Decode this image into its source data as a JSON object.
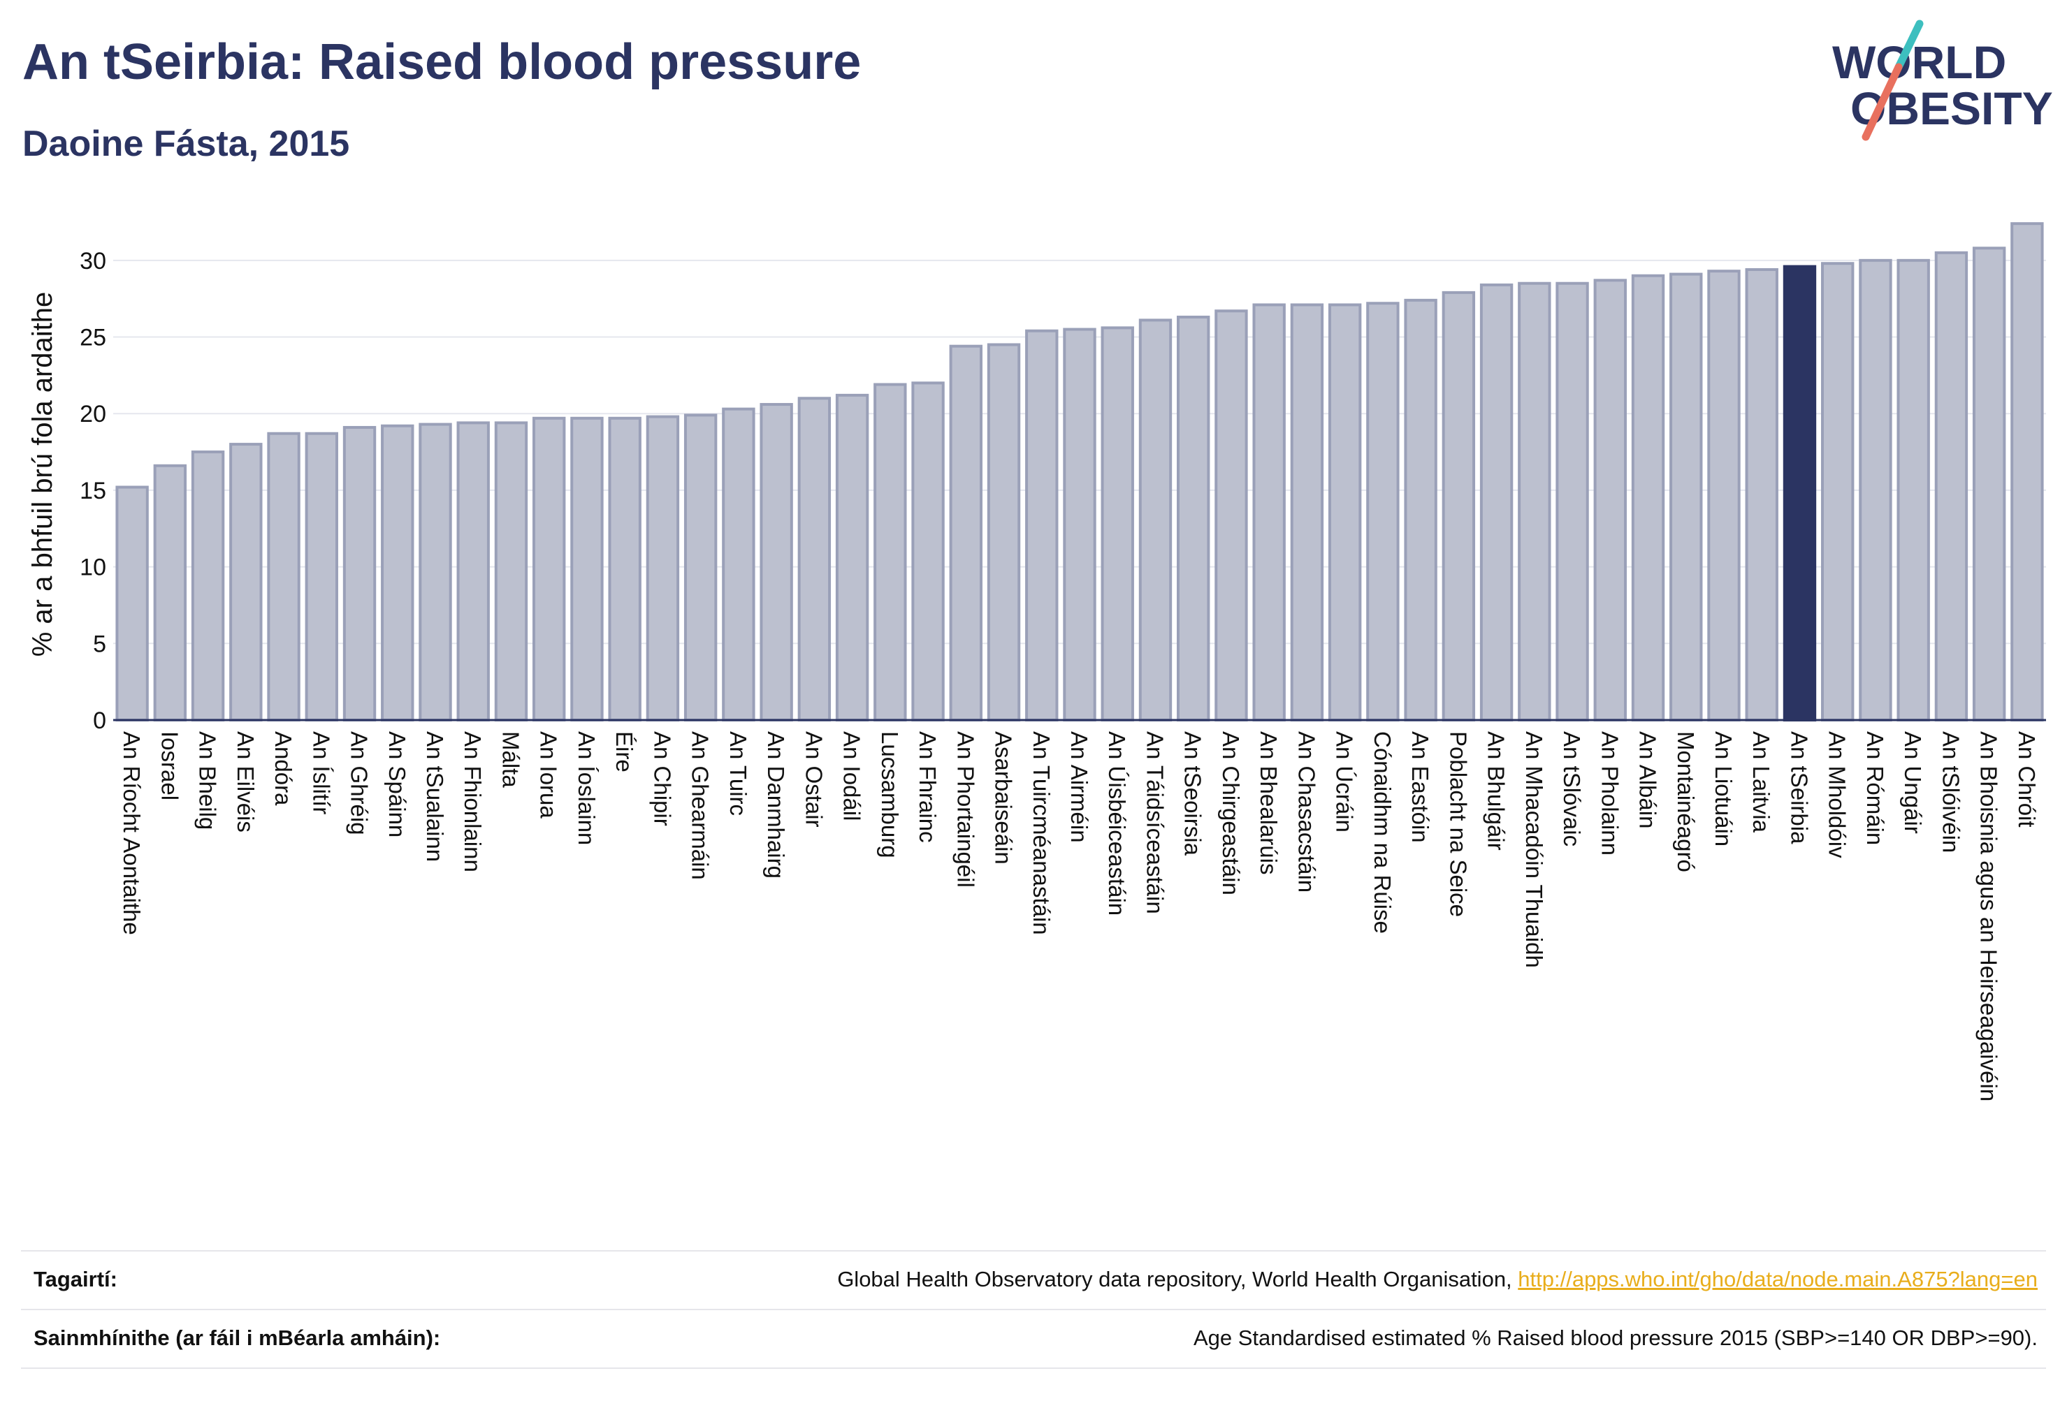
{
  "header": {
    "title": "An tSeirbia: Raised blood pressure",
    "subtitle": "Daoine Fásta, 2015"
  },
  "logo": {
    "line1": "WORLD",
    "line2": "OBESITY",
    "colors": {
      "text": "#2b3462",
      "slash_teal": "#3dbfbf",
      "slash_coral": "#e8705e"
    }
  },
  "colors": {
    "bar_default": "#bcc0cf",
    "bar_default_edge": "#9aa0b8",
    "bar_highlight": "#2b3462",
    "axis": "#2b3462",
    "grid": "#e5e7ee"
  },
  "chart_data": {
    "type": "bar",
    "ylabel": "% ar a bhfuil brú fola ardaithe",
    "xlabel": "",
    "ylim": [
      0,
      33
    ],
    "yticks": [
      0,
      5,
      10,
      15,
      20,
      25,
      30
    ],
    "grid": true,
    "highlight": "An tSeirbia",
    "categories": [
      "An Ríocht Aontaithe",
      "Iosrael",
      "An Bheilg",
      "An Eilvéis",
      "Andóra",
      "An Íslitír",
      "An Ghréig",
      "An Spáinn",
      "An tSualainn",
      "An Fhionlainn",
      "Málta",
      "An Iorua",
      "An Íoslainn",
      "Éire",
      "An Chipir",
      "An Ghearmáin",
      "An Tuirc",
      "An Danmhairg",
      "An Ostair",
      "An Iodáil",
      "Lucsamburg",
      "An Fhrainc",
      "An Phortaingéil",
      "Asarbaiseáin",
      "An Tuircméanastáin",
      "An Airméin",
      "An Úisbéiceastáin",
      "An Táidsíceastáin",
      "An tSeoirsia",
      "An Chirgeastáin",
      "An Bhealarúis",
      "An Chasacstáin",
      "An Úcráin",
      "Cónaidhm na Rúise",
      "An Eastóin",
      "Poblacht na Seice",
      "An Bhulgáir",
      "An Mhacadóin Thuaidh",
      "An tSlóvaic",
      "An Pholainn",
      "An Albáin",
      "Montainéagró",
      "An Liotuáin",
      "An Laitvia",
      "An tSeirbia",
      "An Mholdóiv",
      "An Rómáin",
      "An Ungáir",
      "An tSlóivéin",
      "An Bhoisnia agus an Heirseagaivéin",
      "An Chróit"
    ],
    "values": [
      15.2,
      16.6,
      17.5,
      18.0,
      18.7,
      18.7,
      19.1,
      19.2,
      19.3,
      19.4,
      19.4,
      19.7,
      19.7,
      19.7,
      19.8,
      19.9,
      20.3,
      20.6,
      21.0,
      21.2,
      21.9,
      22.0,
      24.4,
      24.5,
      25.4,
      25.5,
      25.6,
      26.1,
      26.3,
      26.7,
      27.1,
      27.1,
      27.1,
      27.2,
      27.4,
      27.9,
      28.4,
      28.5,
      28.5,
      28.7,
      29.0,
      29.1,
      29.3,
      29.4,
      29.6,
      29.8,
      30.0,
      30.0,
      30.5,
      30.8,
      32.4
    ]
  },
  "footer": {
    "references_label": "Tagairtí:",
    "references_text": "Global Health Observatory data repository, World Health Organisation, ",
    "references_link": "http://apps.who.int/gho/data/node.main.A875?lang=en",
    "definitions_label": "Sainmhínithe (ar fáil i mBéarla amháin):",
    "definitions_text": "Age Standardised estimated % Raised blood pressure 2015 (SBP>=140 OR DBP>=90)."
  }
}
